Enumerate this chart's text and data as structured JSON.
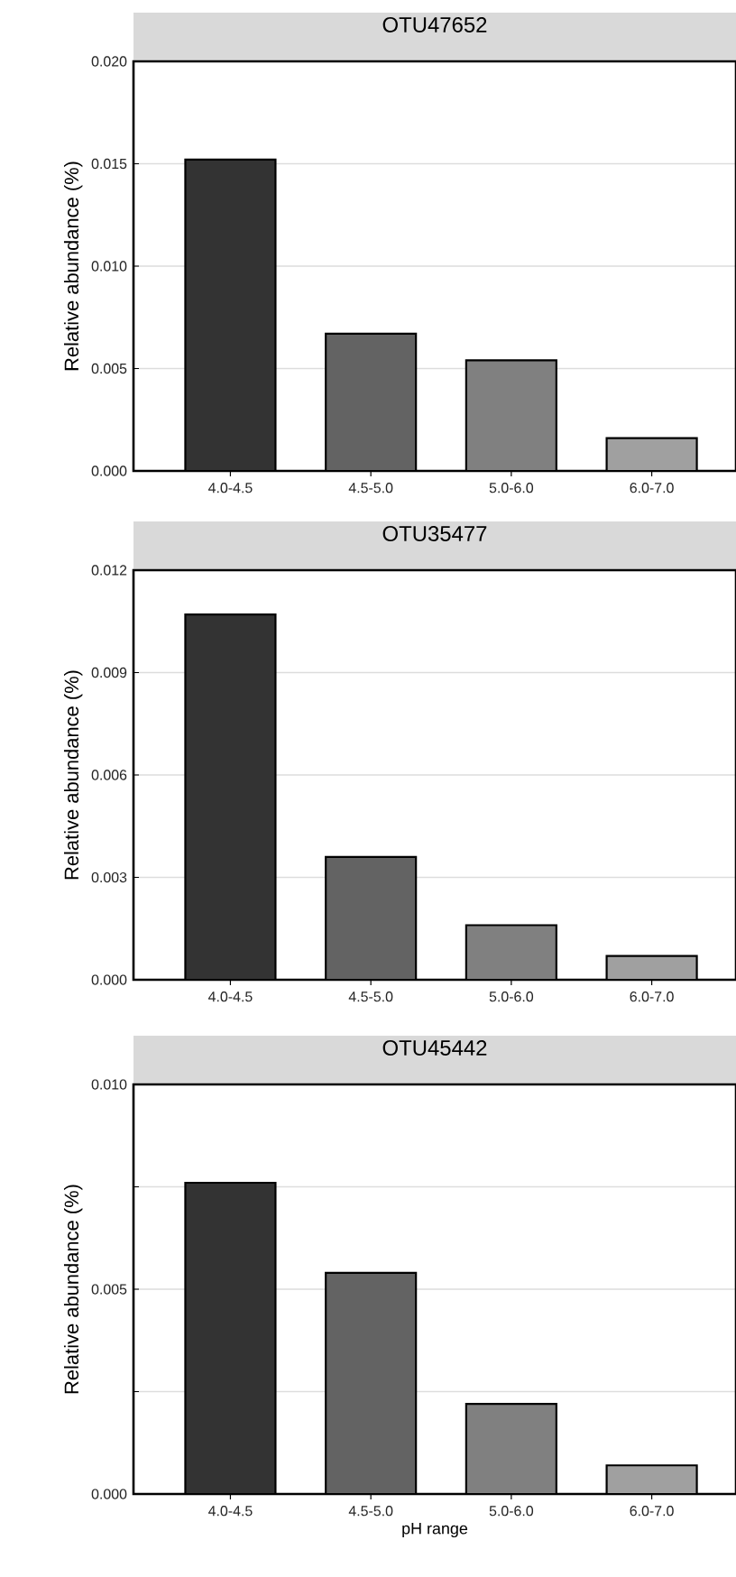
{
  "chart_data": [
    {
      "type": "bar",
      "title": "OTU47652",
      "ylabel": "Relative abundance (%)",
      "categories": [
        "4.0-4.5",
        "4.5-5.0",
        "5.0-6.0",
        "6.0-7.0"
      ],
      "values": [
        0.0152,
        0.0067,
        0.0054,
        0.0016
      ],
      "colors": [
        "#333333",
        "#636363",
        "#808080",
        "#a0a0a0"
      ],
      "ylim": [
        0,
        0.02
      ],
      "yticks": [
        {
          "value": 0,
          "label": "0.000"
        },
        {
          "value": 0.005,
          "label": "0.005"
        },
        {
          "value": 0.01,
          "label": "0.010"
        },
        {
          "value": 0.015,
          "label": "0.015"
        },
        {
          "value": 0.02,
          "label": "0.020"
        }
      ],
      "grid": "y"
    },
    {
      "type": "bar",
      "title": "OTU35477",
      "ylabel": "Relative abundance (%)",
      "categories": [
        "4.0-4.5",
        "4.5-5.0",
        "5.0-6.0",
        "6.0-7.0"
      ],
      "values": [
        0.0107,
        0.0036,
        0.0016,
        0.0007
      ],
      "colors": [
        "#333333",
        "#636363",
        "#808080",
        "#a0a0a0"
      ],
      "ylim": [
        0,
        0.012
      ],
      "yticks": [
        {
          "value": 0,
          "label": "0.000"
        },
        {
          "value": 0.003,
          "label": "0.003"
        },
        {
          "value": 0.006,
          "label": "0.006"
        },
        {
          "value": 0.009,
          "label": "0.009"
        },
        {
          "value": 0.012,
          "label": "0.012"
        }
      ],
      "grid": "y"
    },
    {
      "type": "bar",
      "title": "OTU45442",
      "ylabel": "Relative abundance (%)",
      "xlabel": "pH range",
      "categories": [
        "4.0-4.5",
        "4.5-5.0",
        "5.0-6.0",
        "6.0-7.0"
      ],
      "values": [
        0.0076,
        0.0054,
        0.0022,
        0.0007
      ],
      "colors": [
        "#333333",
        "#636363",
        "#808080",
        "#a0a0a0"
      ],
      "ylim": [
        0,
        0.01
      ],
      "yticks": [
        {
          "value": 0,
          "label": "0.000"
        },
        {
          "value": 0.0025,
          "label": null
        },
        {
          "value": 0.005,
          "label": "0.005"
        },
        {
          "value": 0.0075,
          "label": null
        },
        {
          "value": 0.01,
          "label": "0.010"
        }
      ],
      "grid": "y"
    }
  ]
}
